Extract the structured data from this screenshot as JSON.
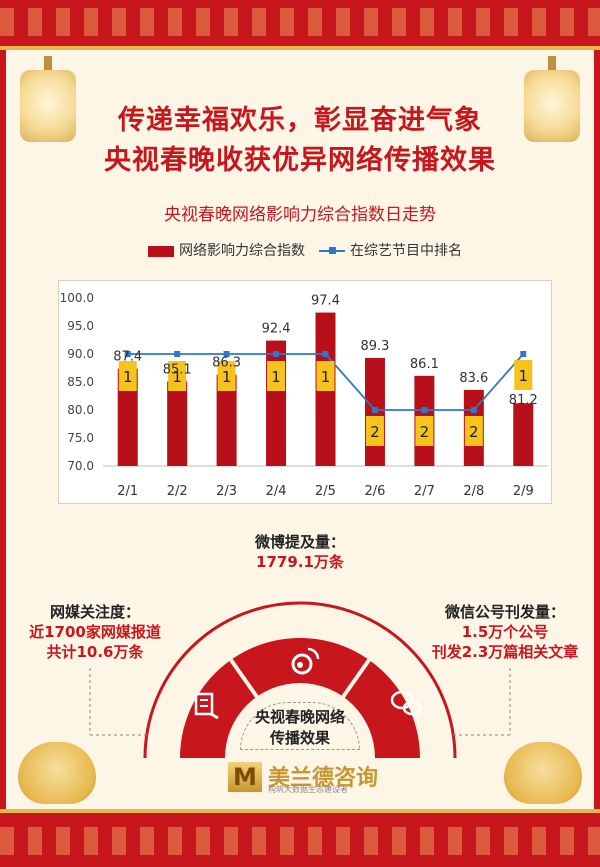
{
  "header": {
    "title_line1": "传递幸福欢乐，彰显奋进气象",
    "title_line2": "央视春晚收获优异网络传播效果"
  },
  "chart_data": {
    "type": "bar",
    "title": "央视春晚网络影响力综合指数日走势",
    "categories": [
      "2/1",
      "2/2",
      "2/3",
      "2/4",
      "2/5",
      "2/6",
      "2/7",
      "2/8",
      "2/9"
    ],
    "series": [
      {
        "name": "网络影响力综合指数",
        "kind": "bar",
        "values": [
          87.4,
          85.1,
          86.3,
          92.4,
          97.4,
          89.3,
          86.1,
          83.6,
          81.2
        ],
        "labels": [
          "87.4",
          "85.1",
          "86.3",
          "92.4",
          "97.4",
          "89.3",
          "86.1",
          "83.6",
          "81.2"
        ]
      },
      {
        "name": "在综艺节目中排名",
        "kind": "line",
        "values": [
          1,
          1,
          1,
          1,
          1,
          2,
          2,
          2,
          1
        ]
      }
    ],
    "y_ticks": [
      "100.0",
      "95.0",
      "90.0",
      "85.0",
      "80.0",
      "75.0",
      "70.0"
    ],
    "ylim": [
      70,
      100
    ],
    "rank_plot_levels": {
      "1": 90,
      "2": 80
    },
    "legend_position": "top",
    "grid": false,
    "colors": {
      "bar": "#b8101a",
      "line": "#2e78c7",
      "rank_badge": "#f6c21c"
    }
  },
  "stats": {
    "weibo": {
      "heading": "微博提及量：",
      "value": "1779.1万条"
    },
    "media": {
      "heading": "网媒关注度：",
      "line1": "近1700家网媒报道",
      "line2": "共计10.6万条"
    },
    "wechat": {
      "heading": "微信公号刊发量：",
      "line1": "1.5万个公号",
      "line2": "刊发2.3万篇相关文章"
    }
  },
  "center": {
    "line1": "央视春晚网络",
    "line2": "传播效果"
  },
  "logo": {
    "mark": "M",
    "name": "美兰德咨询",
    "slogan": "构筑大数据生态建设者"
  },
  "icons": [
    "weibo-icon",
    "wechat-icon",
    "report-icon"
  ]
}
